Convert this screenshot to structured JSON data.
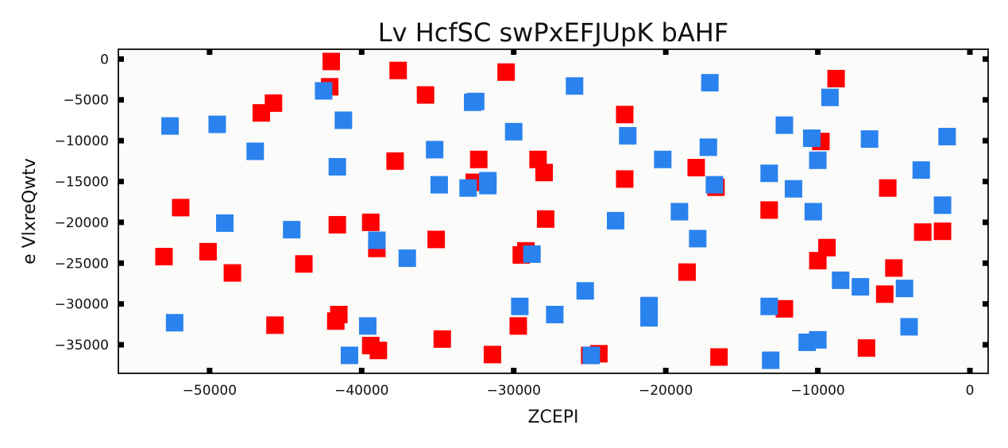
{
  "chart_data": {
    "type": "scatter",
    "title": "Lv HcfSC swPxEFJUpK bAHF",
    "xlabel": "ZCEPI",
    "ylabel": "e  VlxreQwtv",
    "xlim": [
      -56000,
      1200
    ],
    "ylim": [
      -38500,
      1200
    ],
    "xticks": [
      -50000,
      -40000,
      -30000,
      -20000,
      -10000,
      0
    ],
    "xtick_labels": [
      "−50000",
      "−40000",
      "−30000",
      "−20000",
      "−10000",
      "0"
    ],
    "yticks": [
      0,
      -5000,
      -10000,
      -15000,
      -20000,
      -25000,
      -30000,
      -35000
    ],
    "ytick_labels": [
      "0",
      "−5000",
      "−10000",
      "−15000",
      "−20000",
      "−25000",
      "−30000",
      "−35000"
    ],
    "grid": false,
    "background": "#fbfbf9",
    "series": [
      {
        "color": "#ff0000",
        "marker": "square",
        "points": [
          [
            -53000,
            -24200
          ],
          [
            -51900,
            -18200
          ],
          [
            -50100,
            -23600
          ],
          [
            -48500,
            -26200
          ],
          [
            -46600,
            -6600
          ],
          [
            -45800,
            -5400
          ],
          [
            -45700,
            -32600
          ],
          [
            -43800,
            -25100
          ],
          [
            -42000,
            -300
          ],
          [
            -42100,
            -3400
          ],
          [
            -41600,
            -20300
          ],
          [
            -41500,
            -31300
          ],
          [
            -41700,
            -32100
          ],
          [
            -39400,
            -20000
          ],
          [
            -39000,
            -23200
          ],
          [
            -39400,
            -35100
          ],
          [
            -38900,
            -35700
          ],
          [
            -37800,
            -12500
          ],
          [
            -37600,
            -1400
          ],
          [
            -35800,
            -4400
          ],
          [
            -35100,
            -22100
          ],
          [
            -34700,
            -34300
          ],
          [
            -32600,
            -15100
          ],
          [
            -32300,
            -12300
          ],
          [
            -31400,
            -36200
          ],
          [
            -30500,
            -1600
          ],
          [
            -29700,
            -32700
          ],
          [
            -29500,
            -24000
          ],
          [
            -29200,
            -23500
          ],
          [
            -28400,
            -12300
          ],
          [
            -28000,
            -13900
          ],
          [
            -27900,
            -19600
          ],
          [
            -24400,
            -36100
          ],
          [
            -25000,
            -36300
          ],
          [
            -22700,
            -14700
          ],
          [
            -22700,
            -6800
          ],
          [
            -18600,
            -26100
          ],
          [
            -18000,
            -13300
          ],
          [
            -16700,
            -15700
          ],
          [
            -16500,
            -36500
          ],
          [
            -13200,
            -18500
          ],
          [
            -12200,
            -30600
          ],
          [
            -9800,
            -10100
          ],
          [
            -10000,
            -24700
          ],
          [
            -9400,
            -23100
          ],
          [
            -8800,
            -2400
          ],
          [
            -6800,
            -35400
          ],
          [
            -5600,
            -28800
          ],
          [
            -5400,
            -15800
          ],
          [
            -5000,
            -25600
          ],
          [
            -3100,
            -21200
          ],
          [
            -1800,
            -21100
          ]
        ]
      },
      {
        "color": "#2a82ee",
        "marker": "square",
        "points": [
          [
            -52600,
            -8200
          ],
          [
            -52300,
            -32300
          ],
          [
            -49500,
            -8000
          ],
          [
            -49000,
            -20100
          ],
          [
            -47000,
            -11300
          ],
          [
            -44600,
            -20900
          ],
          [
            -42500,
            -3900
          ],
          [
            -41600,
            -13200
          ],
          [
            -41200,
            -7500
          ],
          [
            -40800,
            -36300
          ],
          [
            -39600,
            -32700
          ],
          [
            -39000,
            -22200
          ],
          [
            -37000,
            -24400
          ],
          [
            -35200,
            -11100
          ],
          [
            -34900,
            -15400
          ],
          [
            -33000,
            -15800
          ],
          [
            -32500,
            -5200
          ],
          [
            -32700,
            -5300
          ],
          [
            -31700,
            -15500
          ],
          [
            -31700,
            -14900
          ],
          [
            -30000,
            -8900
          ],
          [
            -29600,
            -30300
          ],
          [
            -28800,
            -23900
          ],
          [
            -27300,
            -31300
          ],
          [
            -26000,
            -3300
          ],
          [
            -25300,
            -28400
          ],
          [
            -24900,
            -36300
          ],
          [
            -23300,
            -19800
          ],
          [
            -22500,
            -9400
          ],
          [
            -21100,
            -30200
          ],
          [
            -21100,
            -31700
          ],
          [
            -20200,
            -12300
          ],
          [
            -19100,
            -18700
          ],
          [
            -17900,
            -22000
          ],
          [
            -17200,
            -10800
          ],
          [
            -17100,
            -2900
          ],
          [
            -16800,
            -15400
          ],
          [
            -13200,
            -14000
          ],
          [
            -13200,
            -30300
          ],
          [
            -13100,
            -36900
          ],
          [
            -12200,
            -8100
          ],
          [
            -11600,
            -15900
          ],
          [
            -10700,
            -34700
          ],
          [
            -10400,
            -9700
          ],
          [
            -10300,
            -18700
          ],
          [
            -10000,
            -34400
          ],
          [
            -10000,
            -12400
          ],
          [
            -9200,
            -4700
          ],
          [
            -8500,
            -27100
          ],
          [
            -7200,
            -27900
          ],
          [
            -6600,
            -9800
          ],
          [
            -4300,
            -28100
          ],
          [
            -4000,
            -32800
          ],
          [
            -3200,
            -13600
          ],
          [
            -1800,
            -17900
          ],
          [
            -1500,
            -9500
          ]
        ]
      }
    ]
  }
}
